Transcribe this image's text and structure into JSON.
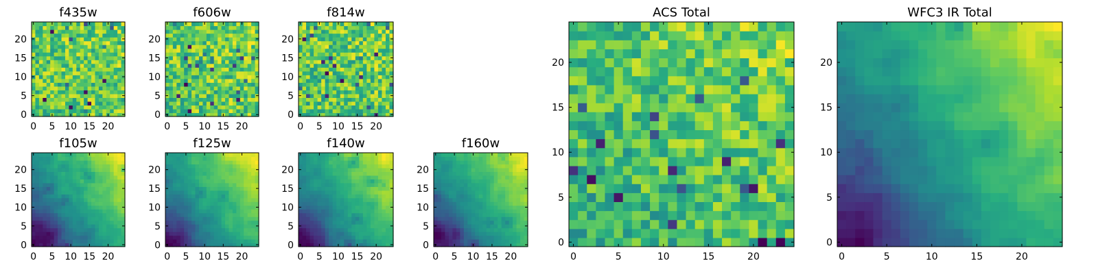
{
  "figure": {
    "background": "#ffffff",
    "colormap": "viridis"
  },
  "chart_data": [
    {
      "type": "heatmap",
      "title": "f435w",
      "grid": [
        25,
        25
      ],
      "xticks": [
        0,
        5,
        10,
        15,
        20
      ],
      "yticks": [
        0,
        5,
        10,
        15,
        20
      ],
      "xlim": [
        -0.5,
        24.5
      ],
      "ylim": [
        -0.5,
        24.5
      ],
      "texture": "speckled",
      "seed": 11
    },
    {
      "type": "heatmap",
      "title": "f606w",
      "grid": [
        25,
        25
      ],
      "xticks": [
        0,
        5,
        10,
        15,
        20
      ],
      "yticks": [
        0,
        5,
        10,
        15,
        20
      ],
      "xlim": [
        -0.5,
        24.5
      ],
      "ylim": [
        -0.5,
        24.5
      ],
      "texture": "speckled",
      "seed": 23
    },
    {
      "type": "heatmap",
      "title": "f814w",
      "grid": [
        25,
        25
      ],
      "xticks": [
        0,
        5,
        10,
        15,
        20
      ],
      "yticks": [
        0,
        5,
        10,
        15,
        20
      ],
      "xlim": [
        -0.5,
        24.5
      ],
      "ylim": [
        -0.5,
        24.5
      ],
      "texture": "speckled",
      "seed": 37
    },
    {
      "type": "heatmap",
      "title": "f105w",
      "grid": [
        25,
        25
      ],
      "xticks": [
        0,
        5,
        10,
        15,
        20
      ],
      "yticks": [
        0,
        5,
        10,
        15,
        20
      ],
      "xlim": [
        -0.5,
        24.5
      ],
      "ylim": [
        -0.5,
        24.5
      ],
      "texture": "smooth",
      "seed": 41
    },
    {
      "type": "heatmap",
      "title": "f125w",
      "grid": [
        25,
        25
      ],
      "xticks": [
        0,
        5,
        10,
        15,
        20
      ],
      "yticks": [
        0,
        5,
        10,
        15,
        20
      ],
      "xlim": [
        -0.5,
        24.5
      ],
      "ylim": [
        -0.5,
        24.5
      ],
      "texture": "smooth",
      "seed": 53
    },
    {
      "type": "heatmap",
      "title": "f140w",
      "grid": [
        25,
        25
      ],
      "xticks": [
        0,
        5,
        10,
        15,
        20
      ],
      "yticks": [
        0,
        5,
        10,
        15,
        20
      ],
      "xlim": [
        -0.5,
        24.5
      ],
      "ylim": [
        -0.5,
        24.5
      ],
      "texture": "smooth",
      "seed": 67
    },
    {
      "type": "heatmap",
      "title": "f160w",
      "grid": [
        25,
        25
      ],
      "xticks": [
        0,
        5,
        10,
        15,
        20
      ],
      "yticks": [
        0,
        5,
        10,
        15,
        20
      ],
      "xlim": [
        -0.5,
        24.5
      ],
      "ylim": [
        -0.5,
        24.5
      ],
      "texture": "smooth",
      "seed": 79
    },
    {
      "type": "heatmap",
      "title": "ACS Total",
      "grid": [
        25,
        25
      ],
      "xticks": [
        0,
        5,
        10,
        15,
        20
      ],
      "yticks": [
        0,
        5,
        10,
        15,
        20
      ],
      "xlim": [
        -0.5,
        24.5
      ],
      "ylim": [
        -0.5,
        24.5
      ],
      "texture": "blocky",
      "seed": 83
    },
    {
      "type": "heatmap",
      "title": "WFC3 IR Total",
      "grid": [
        25,
        25
      ],
      "xticks": [
        0,
        5,
        10,
        15,
        20
      ],
      "yticks": [
        0,
        5,
        10,
        15,
        20
      ],
      "xlim": [
        -0.5,
        24.5
      ],
      "ylim": [
        -0.5,
        24.5
      ],
      "texture": "smooth",
      "seed": 97
    }
  ]
}
